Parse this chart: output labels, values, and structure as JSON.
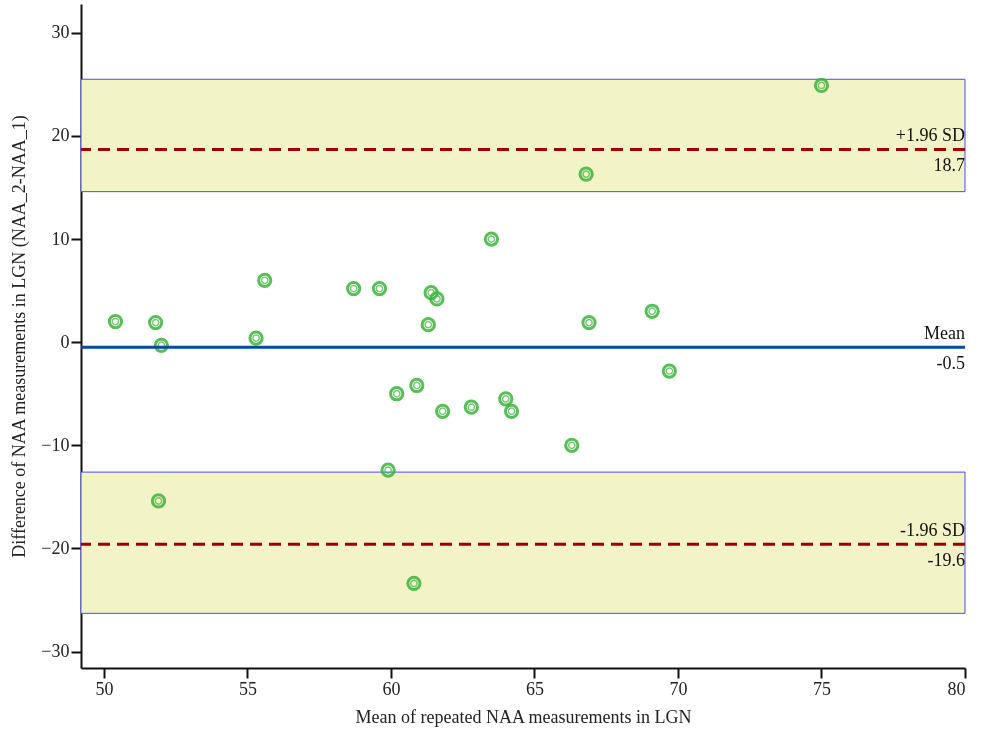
{
  "chart_data": {
    "type": "scatter",
    "xlabel": "Mean of repeated NAA measurements in LGN",
    "ylabel": "Difference  of NAA measurements in LGN (NAA_2-NAA_1)",
    "x": [
      50.4,
      51.8,
      52.0,
      51.9,
      55.3,
      55.6,
      58.7,
      59.6,
      59.9,
      60.2,
      60.9,
      60.8,
      61.3,
      61.4,
      61.6,
      61.8,
      62.8,
      63.5,
      64.0,
      64.2,
      66.3,
      66.8,
      66.9,
      69.1,
      69.7,
      75.0
    ],
    "series": [
      {
        "color": "#3cb43c",
        "values": [
          2.0,
          1.9,
          -0.3,
          -15.4,
          0.4,
          6.0,
          5.2,
          5.2,
          -12.4,
          -5.0,
          -4.2,
          -23.4,
          1.7,
          4.8,
          4.2,
          -6.7,
          -6.3,
          10.0,
          -5.5,
          -6.7,
          -10.0,
          16.3,
          1.9,
          3.0,
          -2.8,
          24.9
        ]
      }
    ],
    "marker": "circle",
    "xlim": [
      49.2,
      80
    ],
    "xticks": [
      50,
      55,
      60,
      65,
      70,
      75,
      80
    ],
    "ylim": [
      -31.6,
      32.8
    ],
    "yticks": [
      -30,
      -20,
      -10,
      0,
      10,
      20,
      30
    ],
    "grid": false,
    "annotations": [
      {
        "text": "18.7",
        "y": 18.7
      },
      {
        "text": "-0.5",
        "y": -0.5
      },
      {
        "text": "-19.6",
        "y": -19.6
      }
    ],
    "bands": [
      {
        "axis": "y",
        "from": 14.6,
        "to": 25.5,
        "color": "#f3f3c8"
      },
      {
        "axis": "y",
        "from": -26.3,
        "to": -12.6,
        "color": "#f3f3c8"
      }
    ],
    "ref_lines": [
      {
        "axis": "y",
        "value": 18.7,
        "label": "+1.96 SD",
        "color": "#a00000",
        "line_style": "dashed"
      },
      {
        "axis": "y",
        "value": -0.5,
        "label": "Mean",
        "color": "#0a4a9a",
        "line_style": "solid"
      },
      {
        "axis": "y",
        "value": -19.6,
        "label": "-1.96 SD",
        "color": "#a00000",
        "line_style": "dashed"
      }
    ]
  }
}
